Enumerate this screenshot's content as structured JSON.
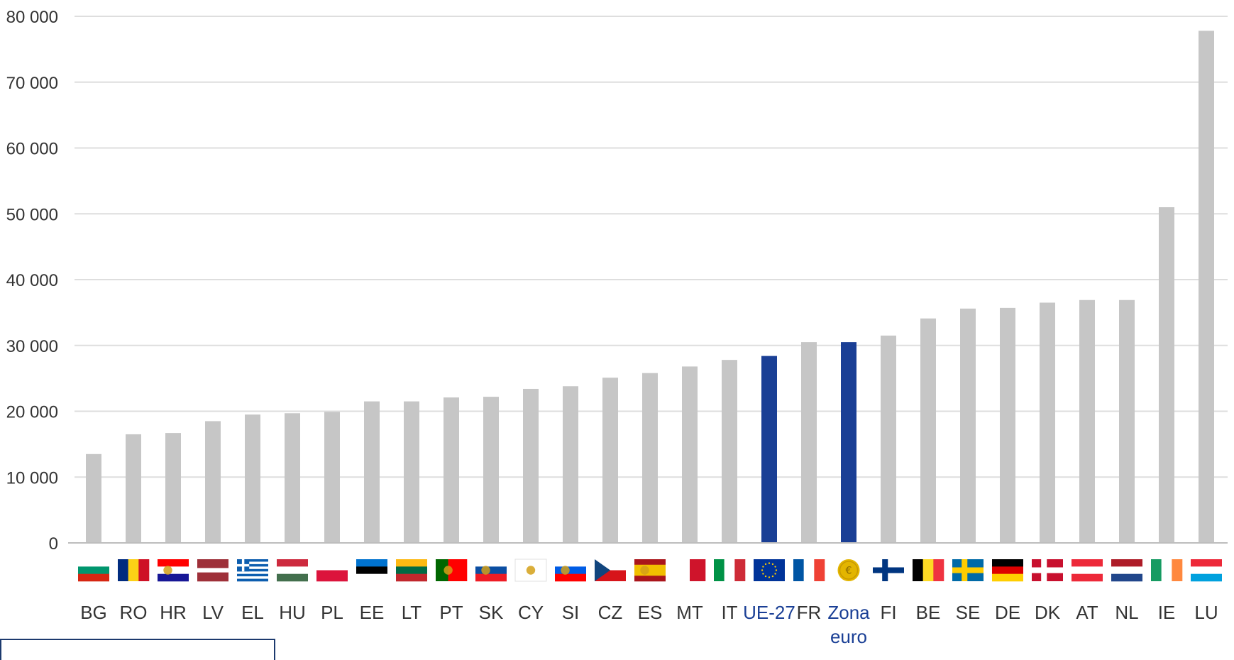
{
  "chart_data": {
    "type": "bar",
    "categories": [
      "BG",
      "RO",
      "HR",
      "LV",
      "EL",
      "HU",
      "PL",
      "EE",
      "LT",
      "PT",
      "SK",
      "CY",
      "SI",
      "CZ",
      "ES",
      "MT",
      "IT",
      "UE-27",
      "FR",
      "Zona euro",
      "FI",
      "BE",
      "SE",
      "DE",
      "DK",
      "AT",
      "NL",
      "IE",
      "LU"
    ],
    "values": [
      13500,
      16500,
      16700,
      18500,
      19500,
      19700,
      19900,
      21500,
      21500,
      22100,
      22200,
      23400,
      23800,
      25100,
      25800,
      26800,
      27800,
      28400,
      30500,
      30500,
      31500,
      34100,
      35600,
      35700,
      36500,
      36900,
      36900,
      51000,
      77800
    ],
    "highlighted": [
      "UE-27",
      "Zona euro"
    ],
    "ylim": [
      0,
      80000
    ],
    "yticks": [
      0,
      10000,
      20000,
      30000,
      40000,
      50000,
      60000,
      70000,
      80000
    ],
    "ytick_labels": [
      "0",
      "10 000",
      "20 000",
      "30 000",
      "40 000",
      "50 000",
      "60 000",
      "70 000",
      "80 000"
    ],
    "title": "",
    "xlabel": "",
    "ylabel": "",
    "grid": true,
    "colors": {
      "bar": "#c6c6c6",
      "highlight": "#1a3f95",
      "grid": "#dedede",
      "axis": "#bdbdbd",
      "label_highlight": "#1a3f95"
    },
    "flags": {
      "BG": {
        "type": "h",
        "colors": [
          "#ffffff",
          "#00966e",
          "#d62612"
        ]
      },
      "RO": {
        "type": "v",
        "colors": [
          "#002b7f",
          "#fcd116",
          "#ce1126"
        ]
      },
      "HR": {
        "type": "h",
        "colors": [
          "#ff0000",
          "#ffffff",
          "#171796"
        ],
        "emblem": true
      },
      "LV": {
        "type": "hw",
        "colors": [
          "#9e3039",
          "#ffffff",
          "#9e3039"
        ],
        "weights": [
          2,
          1,
          2
        ]
      },
      "EL": {
        "type": "greece"
      },
      "HU": {
        "type": "h",
        "colors": [
          "#cd2a3e",
          "#ffffff",
          "#436f4d"
        ]
      },
      "PL": {
        "type": "h",
        "colors": [
          "#ffffff",
          "#dc143c"
        ]
      },
      "EE": {
        "type": "h",
        "colors": [
          "#0072ce",
          "#000000",
          "#ffffff"
        ]
      },
      "LT": {
        "type": "h",
        "colors": [
          "#fdb913",
          "#006a44",
          "#c1272d"
        ]
      },
      "PT": {
        "type": "vw",
        "colors": [
          "#006600",
          "#ff0000"
        ],
        "weights": [
          2,
          3
        ],
        "emblem": true
      },
      "SK": {
        "type": "h",
        "colors": [
          "#ffffff",
          "#0b4ea2",
          "#ee1c25"
        ],
        "emblem": true
      },
      "CY": {
        "type": "plain",
        "colors": [
          "#ffffff"
        ],
        "emblem": true
      },
      "SI": {
        "type": "h",
        "colors": [
          "#ffffff",
          "#005ce5",
          "#ff0000"
        ],
        "emblem": true
      },
      "CZ": {
        "type": "cz"
      },
      "ES": {
        "type": "hw",
        "colors": [
          "#aa151b",
          "#f1bf00",
          "#aa151b"
        ],
        "weights": [
          1,
          2,
          1
        ],
        "emblem": true
      },
      "MT": {
        "type": "v",
        "colors": [
          "#ffffff",
          "#cf142b"
        ]
      },
      "IT": {
        "type": "v",
        "colors": [
          "#009246",
          "#ffffff",
          "#ce2b37"
        ]
      },
      "UE-27": {
        "type": "eu"
      },
      "FR": {
        "type": "v",
        "colors": [
          "#0055a4",
          "#ffffff",
          "#ef4135"
        ]
      },
      "Zona euro": {
        "type": "euro"
      },
      "FI": {
        "type": "nordic",
        "colors": [
          "#ffffff",
          "#003580"
        ]
      },
      "BE": {
        "type": "v",
        "colors": [
          "#000000",
          "#fdda24",
          "#ef3340"
        ]
      },
      "SE": {
        "type": "nordic",
        "colors": [
          "#006aa7",
          "#fecc00"
        ]
      },
      "DE": {
        "type": "h",
        "colors": [
          "#000000",
          "#dd0000",
          "#ffce00"
        ]
      },
      "DK": {
        "type": "nordic",
        "colors": [
          "#c8102e",
          "#ffffff"
        ]
      },
      "AT": {
        "type": "h",
        "colors": [
          "#ed2939",
          "#ffffff",
          "#ed2939"
        ]
      },
      "NL": {
        "type": "h",
        "colors": [
          "#ae1c28",
          "#ffffff",
          "#21468b"
        ]
      },
      "IE": {
        "type": "v",
        "colors": [
          "#169b62",
          "#ffffff",
          "#ff883e"
        ]
      },
      "LU": {
        "type": "h",
        "colors": [
          "#ed2939",
          "#ffffff",
          "#00a1de"
        ]
      }
    }
  }
}
